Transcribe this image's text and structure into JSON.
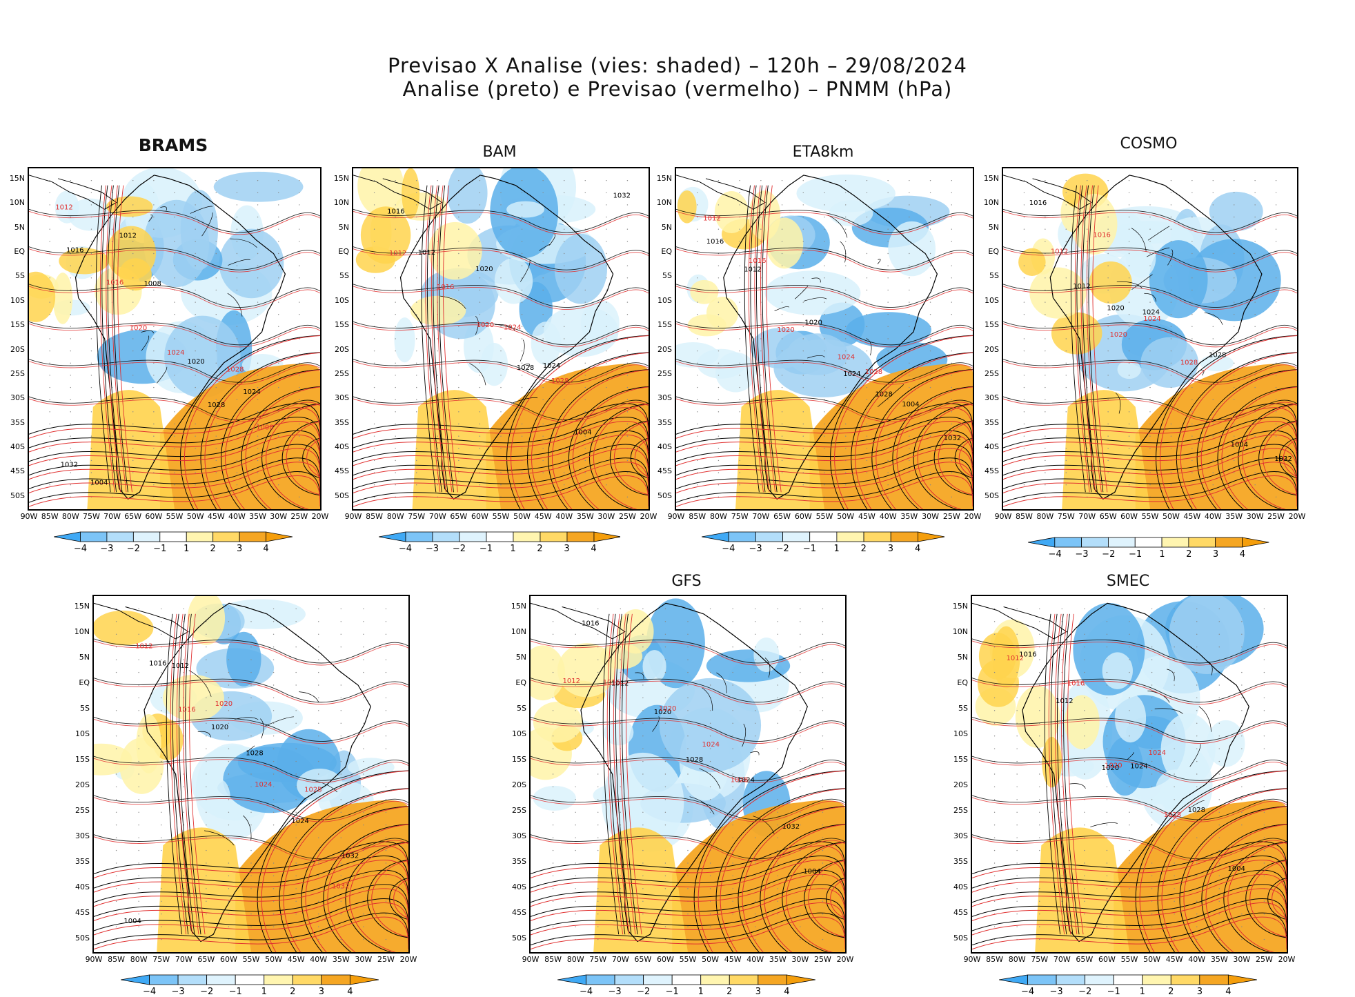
{
  "header": {
    "line1": "Previsao X Analise (vies: shaded) – 120h – 29/08/2024",
    "line2": "Analise (preto) e Previsao (vermelho) – PNMM (hPa)"
  },
  "axes": {
    "lat_labels": [
      "15N",
      "10N",
      "5N",
      "EQ",
      "5S",
      "10S",
      "15S",
      "20S",
      "25S",
      "30S",
      "35S",
      "40S",
      "45S",
      "50S"
    ],
    "lon_labels": [
      "90W",
      "85W",
      "80W",
      "75W",
      "70W",
      "65W",
      "60W",
      "55W",
      "50W",
      "45W",
      "40W",
      "35W",
      "30W",
      "25W",
      "20W"
    ]
  },
  "colorbar": {
    "labels": [
      "−4",
      "−3",
      "−2",
      "−1",
      "1",
      "2",
      "3",
      "4"
    ],
    "colors": [
      "#3fa9f5",
      "#7cc4f7",
      "#b3defa",
      "#dff3fd",
      "#ffffff",
      "#fff5b0",
      "#ffd966",
      "#f5a623",
      "#f59e0b"
    ]
  },
  "colors": {
    "analysis": "#000000",
    "forecast": "#e03030",
    "neg_strong": "#5aafea",
    "neg_mid": "#9fd0f2",
    "neg_weak": "#d8f1fb",
    "pos_weak": "#fff3a8",
    "pos_mid": "#ffd34d",
    "pos_strong": "#f5a623"
  },
  "panels": [
    {
      "id": "brams",
      "title": "BRAMS",
      "labels_black": [
        "1016",
        "1012",
        "1008",
        "1020",
        "1028",
        "1024",
        "1032",
        "1004"
      ],
      "labels_red": [
        "1012",
        "1016",
        "1020",
        "1024",
        "1028",
        "1008"
      ]
    },
    {
      "id": "bam",
      "title": "BAM",
      "labels_black": [
        "1016",
        "1012",
        "1020",
        "1028",
        "1024",
        "1004",
        "1032"
      ],
      "labels_red": [
        "1012",
        "1016",
        "1020",
        "1024",
        "1028"
      ]
    },
    {
      "id": "eta8km",
      "title": "ETA8km",
      "labels_black": [
        "1016",
        "1012",
        "1020",
        "1024",
        "1028",
        "1004",
        "1032"
      ],
      "labels_red": [
        "1012",
        "1016",
        "1020",
        "1024",
        "1028"
      ]
    },
    {
      "id": "cosmo",
      "title": "COSMO",
      "labels_black": [
        "1016",
        "1012",
        "1020",
        "1024",
        "1028",
        "1004",
        "1032"
      ],
      "labels_red": [
        "1012",
        "1016",
        "1020",
        "1024",
        "1028"
      ]
    },
    {
      "id": "fourth",
      "title": "",
      "labels_black": [
        "1016",
        "1012",
        "1020",
        "1028",
        "1024",
        "1032",
        "1004"
      ],
      "labels_red": [
        "1012",
        "1016",
        "1020",
        "1024",
        "1028",
        "1032"
      ]
    },
    {
      "id": "gfs",
      "title": "GFS",
      "labels_black": [
        "1016",
        "1012",
        "1020",
        "1028",
        "1024",
        "1032",
        "1004"
      ],
      "labels_red": [
        "1012",
        "1016",
        "1020",
        "1024",
        "1028"
      ]
    },
    {
      "id": "smec",
      "title": "SMEC",
      "labels_black": [
        "1016",
        "1012",
        "1020",
        "1024",
        "1028",
        "1004"
      ],
      "labels_red": [
        "1012",
        "1016",
        "1020",
        "1024",
        "1028"
      ]
    }
  ]
}
